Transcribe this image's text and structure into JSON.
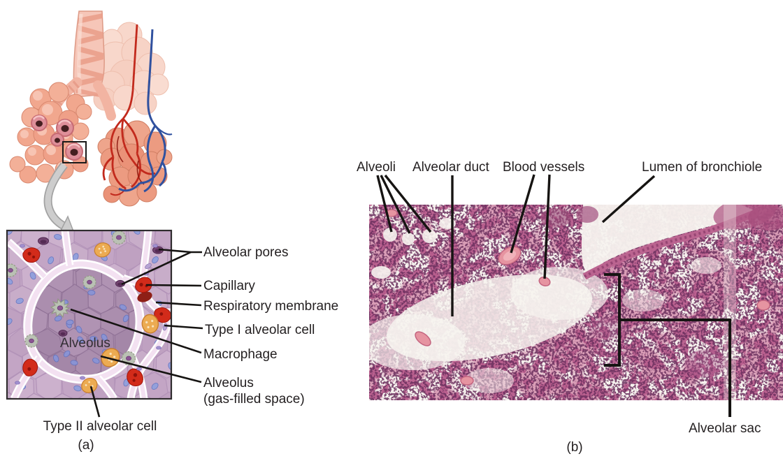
{
  "panel_a": {
    "caption": "(a)",
    "alveolus_center_label": "Alveolus",
    "callouts": {
      "alveolar_pores": "Alveolar pores",
      "capillary": "Capillary",
      "respiratory_membrane": "Respiratory membrane",
      "type_i_alveolar_cell": "Type I alveolar cell",
      "macrophage": "Macrophage",
      "alveolus_line1": "Alveolus",
      "alveolus_line2": "(gas-filled space)",
      "type_ii_alveolar_cell": "Type II alveolar cell"
    }
  },
  "panel_b": {
    "caption": "(b)",
    "callouts": {
      "alveoli": "Alveoli",
      "alveolar_duct": "Alveolar duct",
      "blood_vessels": "Blood vessels",
      "lumen_of_bronchiole": "Lumen of bronchiole",
      "alveolar_sac": "Alveolar sac"
    }
  },
  "colors": {
    "label_text": "#231f20",
    "leader_line": "#161412",
    "illustration_salmon": "#f1a78e",
    "vessel_red": "#c22a1d",
    "vessel_blue": "#30519f",
    "tissue_field_mauve": "#c6aac8",
    "alveolus_interior_mauve": "#aa8dad",
    "septum_pink": "#f3e1f1",
    "red_blood_cell": "#d22b1a",
    "macrophage_gray": "#bac1b4",
    "type_ii_cell_yellow": "#ecab52",
    "nucleus_blue": "#93a0db",
    "pore_plum": "#744672",
    "micrograph_tissue_pink": "#d696b1",
    "micrograph_nuclei_purple": "#6b3060",
    "micrograph_background": "#f7f3ef"
  }
}
